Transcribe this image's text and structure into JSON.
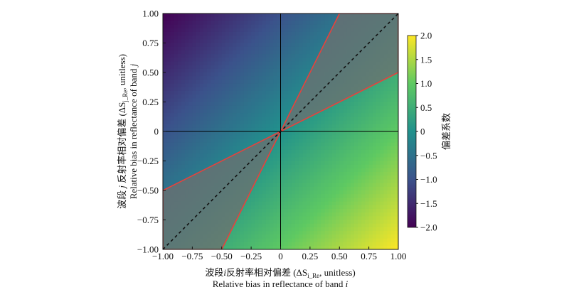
{
  "chart_data": {
    "type": "heatmap",
    "title": "",
    "xlabel": {
      "line1_prefix": "波段",
      "line1_var": "i",
      "line1_mid": "反射率相对偏差 (ΔS",
      "line1_sub": "i_Re",
      "line1_suffix": ", unitless)",
      "line2_prefix": "Relative bias in reflectance of band ",
      "line2_var": "i"
    },
    "ylabel": {
      "line1_prefix": "波段 ",
      "line1_var": "j",
      "line1_mid": " 反射率相对偏差 (ΔS",
      "line1_sub": "j_Re",
      "line1_suffix": ", unitless)",
      "line2_prefix": "Relative bias in reflectance of band ",
      "line2_var": "j"
    },
    "xlim": [
      -1,
      1
    ],
    "ylim": [
      -1,
      1
    ],
    "x_ticks": [
      -1,
      -0.75,
      -0.5,
      -0.25,
      0,
      0.25,
      0.5,
      0.75,
      1
    ],
    "x_tick_labels": [
      "−1.00",
      "−0.75",
      "−0.50",
      "−0.25",
      "0",
      "0.25",
      "0.50",
      "0.75",
      "1.00"
    ],
    "y_ticks": [
      -1,
      -0.75,
      -0.5,
      -0.25,
      0,
      0.25,
      0.5,
      0.75,
      1
    ],
    "y_tick_labels": [
      "−1.00",
      "−0.75",
      "−0.50",
      "−0.25",
      "0",
      "0.25",
      "0.50",
      "0.75",
      "1.00"
    ],
    "field": "value = x − y (bias coefficient)",
    "colorbar": {
      "label": "偏差系数",
      "min": -2.0,
      "max": 2.0,
      "ticks": [
        -2.0,
        -1.5,
        -1.0,
        -0.5,
        0,
        0.5,
        1.0,
        1.5,
        2.0
      ],
      "tick_labels": [
        "−2.0",
        "−1.5",
        "−1.0",
        "−0.5",
        "0",
        "0.5",
        "1.0",
        "1.5",
        "2.0"
      ],
      "colormap": [
        "#440154",
        "#3b528b",
        "#21918c",
        "#5ec962",
        "#fde725"
      ]
    },
    "shaded_regions": [
      {
        "name": "upper-region",
        "vertices": [
          [
            0,
            0
          ],
          [
            0.5,
            1
          ],
          [
            1,
            1
          ],
          [
            1,
            0.5
          ]
        ]
      },
      {
        "name": "lower-region",
        "vertices": [
          [
            0,
            0
          ],
          [
            -0.5,
            -1
          ],
          [
            -1,
            -1
          ],
          [
            -1,
            -0.5
          ]
        ]
      }
    ],
    "diagonal": {
      "from": [
        -1,
        -1
      ],
      "to": [
        1,
        1
      ],
      "style": "dashed"
    },
    "zero_lines": true,
    "grid": false,
    "colors": {
      "region_fill": "#6f6f6f",
      "region_edge": "#e8413c",
      "diagonal": "#111111",
      "zero_line": "#000000"
    }
  }
}
